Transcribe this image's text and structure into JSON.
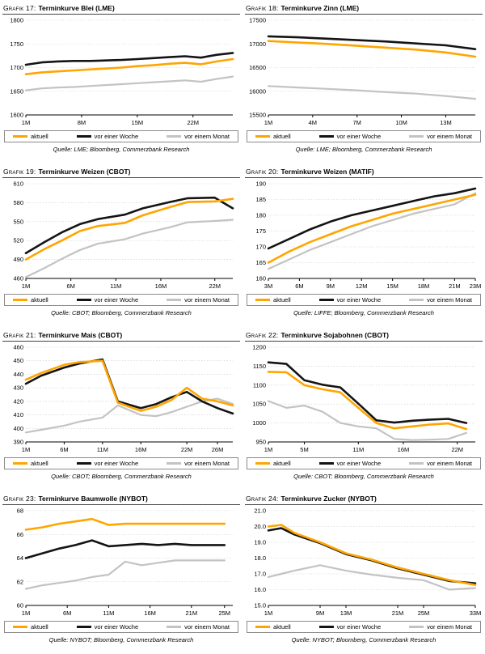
{
  "legend": {
    "items": [
      {
        "label": "aktuell",
        "color": "#FFA500"
      },
      {
        "label": "vor einer Woche",
        "color": "#141414"
      },
      {
        "label": "vor einem Monat",
        "color": "#C3C3C3"
      }
    ]
  },
  "chart_data": [
    {
      "type": "line",
      "label": "Grafik 17:",
      "title": "Terminkurve Blei (LME)",
      "source": "Quelle: LME; Bloomberg, Commerzbank Research",
      "xlim": [
        1,
        27
      ],
      "xticks": [
        {
          "v": 1,
          "t": "1M"
        },
        {
          "v": 8,
          "t": "8M"
        },
        {
          "v": 15,
          "t": "15M"
        },
        {
          "v": 22,
          "t": "22M"
        }
      ],
      "ylim": [
        1600,
        1800
      ],
      "yticks": [
        1600,
        1650,
        1700,
        1750,
        1800
      ],
      "ydecimals": 0,
      "x": [
        1,
        3,
        5,
        7,
        9,
        11,
        13,
        15,
        17,
        19,
        21,
        23,
        25,
        27
      ],
      "series": [
        {
          "name": "aktuell",
          "color": "#FFA500",
          "width": 2.6,
          "values": [
            1686,
            1690,
            1692,
            1694,
            1696,
            1698,
            1700,
            1703,
            1705,
            1708,
            1710,
            1707,
            1713,
            1718
          ]
        },
        {
          "name": "vor einer Woche",
          "color": "#141414",
          "width": 2.6,
          "values": [
            1706,
            1711,
            1713,
            1714,
            1714,
            1715,
            1716,
            1718,
            1720,
            1722,
            1724,
            1721,
            1727,
            1731
          ]
        },
        {
          "name": "vor einem Monat",
          "color": "#C3C3C3",
          "width": 2.2,
          "values": [
            1652,
            1656,
            1658,
            1659,
            1661,
            1663,
            1665,
            1667,
            1669,
            1671,
            1673,
            1670,
            1676,
            1681
          ]
        }
      ]
    },
    {
      "type": "line",
      "label": "Grafik 18:",
      "title": "Terminkurve Zinn (LME)",
      "source": "Quelle: LME; Bloomberg, Commerzbank Research",
      "xlim": [
        1,
        15
      ],
      "xticks": [
        {
          "v": 1,
          "t": "1M"
        },
        {
          "v": 4,
          "t": "4M"
        },
        {
          "v": 7,
          "t": "7M"
        },
        {
          "v": 10,
          "t": "10M"
        },
        {
          "v": 13,
          "t": "13M"
        }
      ],
      "ylim": [
        15500,
        17500
      ],
      "yticks": [
        15500,
        16000,
        16500,
        17000,
        17500
      ],
      "ydecimals": 0,
      "x": [
        1,
        3,
        5,
        7,
        9,
        11,
        13,
        15
      ],
      "series": [
        {
          "name": "aktuell",
          "color": "#FFA500",
          "width": 2.6,
          "values": [
            17060,
            17030,
            17000,
            16960,
            16920,
            16880,
            16820,
            16730
          ]
        },
        {
          "name": "vor einer Woche",
          "color": "#141414",
          "width": 2.6,
          "values": [
            17160,
            17140,
            17110,
            17080,
            17050,
            17010,
            16970,
            16890
          ]
        },
        {
          "name": "vor einem Monat",
          "color": "#C3C3C3",
          "width": 2.2,
          "values": [
            16110,
            16080,
            16050,
            16020,
            15980,
            15950,
            15900,
            15840
          ]
        }
      ]
    },
    {
      "type": "line",
      "label": "Grafik 19:",
      "title": "Terminkurve Weizen (CBOT)",
      "source": "Quelle: CBOT; Bloomberg, Commerzbank Research",
      "xlim": [
        1,
        24
      ],
      "xticks": [
        {
          "v": 1,
          "t": "1M"
        },
        {
          "v": 6,
          "t": "6M"
        },
        {
          "v": 11,
          "t": "11M"
        },
        {
          "v": 16,
          "t": "16M"
        },
        {
          "v": 22,
          "t": "22M"
        }
      ],
      "ylim": [
        460,
        610
      ],
      "yticks": [
        460,
        490,
        520,
        550,
        580,
        610
      ],
      "ydecimals": 0,
      "x": [
        1,
        3,
        5,
        7,
        9,
        12,
        14,
        17,
        19,
        22,
        24
      ],
      "series": [
        {
          "name": "aktuell",
          "color": "#FFA500",
          "width": 2.6,
          "values": [
            490,
            506,
            520,
            535,
            543,
            548,
            560,
            573,
            581,
            582,
            586
          ]
        },
        {
          "name": "vor einer Woche",
          "color": "#141414",
          "width": 2.6,
          "values": [
            500,
            517,
            533,
            546,
            554,
            561,
            571,
            581,
            587,
            588,
            571
          ]
        },
        {
          "name": "vor einem Monat",
          "color": "#C3C3C3",
          "width": 2.2,
          "values": [
            462,
            476,
            491,
            505,
            515,
            522,
            531,
            541,
            549,
            551,
            553
          ]
        }
      ]
    },
    {
      "type": "line",
      "label": "Grafik 20:",
      "title": "Terminkurve Weizen (MATIF)",
      "source": "Quelle: LIFFE; Bloomberg, Commerzbank Research",
      "xlim": [
        3,
        23
      ],
      "xticks": [
        {
          "v": 3,
          "t": "3M"
        },
        {
          "v": 6,
          "t": "6M"
        },
        {
          "v": 9,
          "t": "9M"
        },
        {
          "v": 12,
          "t": "12M"
        },
        {
          "v": 15,
          "t": "15M"
        },
        {
          "v": 18,
          "t": "18M"
        },
        {
          "v": 21,
          "t": "21M"
        },
        {
          "v": 23,
          "t": "23M"
        }
      ],
      "ylim": [
        160,
        190
      ],
      "yticks": [
        160,
        165,
        170,
        175,
        180,
        185,
        190
      ],
      "ydecimals": 0,
      "x": [
        3,
        5,
        7,
        9,
        11,
        13,
        15,
        17,
        19,
        21,
        23
      ],
      "series": [
        {
          "name": "aktuell",
          "color": "#FFA500",
          "width": 2.6,
          "values": [
            165,
            168.5,
            171.5,
            174,
            176.5,
            178.5,
            180.5,
            182,
            183.5,
            185,
            186.5
          ]
        },
        {
          "name": "vor einer Woche",
          "color": "#141414",
          "width": 2.6,
          "values": [
            169.5,
            172.5,
            175.5,
            178,
            180,
            181.5,
            183,
            184.5,
            186,
            187,
            188.5
          ]
        },
        {
          "name": "vor einem Monat",
          "color": "#C3C3C3",
          "width": 2.2,
          "values": [
            163,
            166,
            169,
            171.5,
            174,
            176.5,
            178.5,
            180.5,
            182,
            183.5,
            187
          ]
        }
      ]
    },
    {
      "type": "line",
      "label": "Grafik 21:",
      "title": "Terminkurve Mais (CBOT)",
      "source": "Quelle: CBOT; Bloomberg, Commerzbank Research",
      "xlim": [
        1,
        28
      ],
      "xticks": [
        {
          "v": 1,
          "t": "1M"
        },
        {
          "v": 6,
          "t": "6M"
        },
        {
          "v": 11,
          "t": "11M"
        },
        {
          "v": 16,
          "t": "16M"
        },
        {
          "v": 22,
          "t": "22M"
        },
        {
          "v": 26,
          "t": "26M"
        }
      ],
      "ylim": [
        390,
        460
      ],
      "yticks": [
        390,
        400,
        410,
        420,
        430,
        440,
        450,
        460
      ],
      "ydecimals": 0,
      "x": [
        1,
        3,
        6,
        8,
        11,
        13,
        16,
        18,
        20,
        22,
        24,
        26,
        28
      ],
      "series": [
        {
          "name": "aktuell",
          "color": "#FFA500",
          "width": 2.6,
          "values": [
            436,
            441,
            447,
            449,
            450,
            419,
            413,
            416,
            421,
            430,
            422,
            420,
            417
          ]
        },
        {
          "name": "vor einer Woche",
          "color": "#141414",
          "width": 2.6,
          "values": [
            433,
            439,
            445,
            448,
            451,
            420,
            415,
            418,
            423,
            427,
            420,
            415,
            411
          ]
        },
        {
          "name": "vor einem Monat",
          "color": "#C3C3C3",
          "width": 2.2,
          "values": [
            397,
            399,
            402,
            405,
            408,
            417,
            410,
            409,
            412,
            416,
            420,
            422,
            418
          ]
        }
      ]
    },
    {
      "type": "line",
      "label": "Grafik 22:",
      "title": "Terminkurve Sojabohnen (CBOT)",
      "source": "Quelle: CBOT; Bloomberg, Commerzbank Research",
      "xlim": [
        1,
        24
      ],
      "xticks": [
        {
          "v": 1,
          "t": "1M"
        },
        {
          "v": 5,
          "t": "5M"
        },
        {
          "v": 11,
          "t": "11M"
        },
        {
          "v": 16,
          "t": "16M"
        },
        {
          "v": 22,
          "t": "22M"
        }
      ],
      "ylim": [
        950,
        1200
      ],
      "yticks": [
        950,
        1000,
        1050,
        1100,
        1150,
        1200
      ],
      "ydecimals": 0,
      "x": [
        1,
        3,
        5,
        7,
        9,
        11,
        13,
        15,
        17,
        19,
        21,
        23
      ],
      "series": [
        {
          "name": "aktuell",
          "color": "#FFA500",
          "width": 2.6,
          "values": [
            1135,
            1134,
            1100,
            1089,
            1081,
            1040,
            1000,
            986,
            991,
            996,
            999,
            984
          ]
        },
        {
          "name": "vor einer Woche",
          "color": "#141414",
          "width": 2.6,
          "values": [
            1160,
            1156,
            1113,
            1101,
            1094,
            1051,
            1007,
            1001,
            1006,
            1009,
            1011,
            1000
          ]
        },
        {
          "name": "vor einem Monat",
          "color": "#C3C3C3",
          "width": 2.2,
          "values": [
            1058,
            1040,
            1046,
            1030,
            1000,
            991,
            986,
            958,
            955,
            956,
            958,
            974
          ]
        }
      ]
    },
    {
      "type": "line",
      "label": "Grafik 23:",
      "title": "Terminkurve Baumwolle (NYBOT)",
      "source": "Quelle: NYBOT; Bloomberg, Commerzbank Research",
      "xlim": [
        1,
        26
      ],
      "xticks": [
        {
          "v": 1,
          "t": "1M"
        },
        {
          "v": 6,
          "t": "6M"
        },
        {
          "v": 11,
          "t": "11M"
        },
        {
          "v": 16,
          "t": "16M"
        },
        {
          "v": 21,
          "t": "21M"
        },
        {
          "v": 25,
          "t": "25M"
        }
      ],
      "ylim": [
        60,
        68
      ],
      "yticks": [
        60,
        62,
        64,
        66,
        68
      ],
      "ydecimals": 0,
      "x": [
        1,
        3,
        5,
        7,
        9,
        11,
        13,
        15,
        17,
        19,
        21,
        23,
        25
      ],
      "series": [
        {
          "name": "aktuell",
          "color": "#FFA500",
          "width": 2.6,
          "values": [
            66.4,
            66.6,
            66.9,
            67.1,
            67.3,
            66.8,
            66.9,
            66.9,
            66.9,
            66.9,
            66.9,
            66.9,
            66.9
          ]
        },
        {
          "name": "vor einer Woche",
          "color": "#141414",
          "width": 2.6,
          "values": [
            64.0,
            64.4,
            64.8,
            65.1,
            65.5,
            65.0,
            65.1,
            65.2,
            65.1,
            65.2,
            65.1,
            65.1,
            65.1
          ]
        },
        {
          "name": "vor einem Monat",
          "color": "#C3C3C3",
          "width": 2.2,
          "values": [
            61.4,
            61.7,
            61.9,
            62.1,
            62.4,
            62.6,
            63.7,
            63.4,
            63.6,
            63.8,
            63.8,
            63.8,
            63.8
          ]
        }
      ]
    },
    {
      "type": "line",
      "label": "Grafik 24:",
      "title": "Terminkurve Zucker (NYBOT)",
      "source": "Quelle: NYBOT; Bloomberg, Commerzbank Research",
      "xlim": [
        1,
        33
      ],
      "xticks": [
        {
          "v": 1,
          "t": "1M"
        },
        {
          "v": 9,
          "t": "9M"
        },
        {
          "v": 13,
          "t": "13M"
        },
        {
          "v": 21,
          "t": "21M"
        },
        {
          "v": 25,
          "t": "25M"
        },
        {
          "v": 33,
          "t": "33M"
        }
      ],
      "ylim": [
        15,
        21
      ],
      "yticks": [
        15,
        16,
        17,
        18,
        19,
        20,
        21
      ],
      "ydecimals": 1,
      "x": [
        1,
        3,
        5,
        9,
        13,
        17,
        21,
        25,
        29,
        33
      ],
      "series": [
        {
          "name": "aktuell",
          "color": "#FFA500",
          "width": 2.6,
          "values": [
            20.0,
            20.1,
            19.6,
            19.0,
            18.3,
            17.9,
            17.4,
            17.0,
            16.6,
            16.3
          ]
        },
        {
          "name": "vor einer Woche",
          "color": "#141414",
          "width": 2.6,
          "values": [
            19.75,
            19.9,
            19.5,
            18.95,
            18.25,
            17.85,
            17.35,
            16.95,
            16.55,
            16.4
          ]
        },
        {
          "name": "vor einem Monat",
          "color": "#C3C3C3",
          "width": 2.2,
          "values": [
            16.8,
            17.0,
            17.2,
            17.55,
            17.2,
            16.95,
            16.75,
            16.6,
            16.0,
            16.1
          ]
        }
      ]
    }
  ]
}
